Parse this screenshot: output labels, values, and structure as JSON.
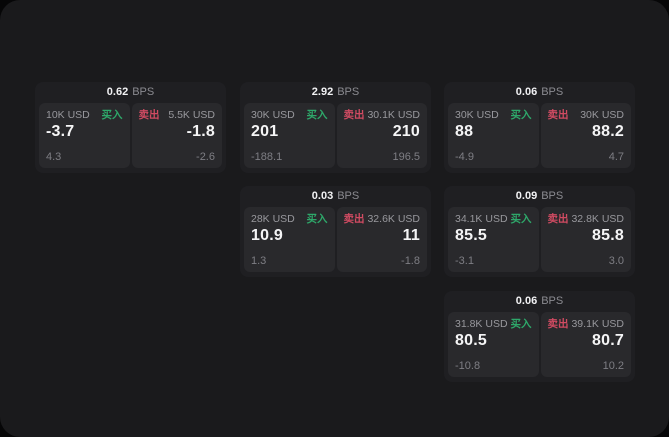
{
  "labels": {
    "buy": "买入",
    "sell": "卖出",
    "bps_suffix": "BPS"
  },
  "colors": {
    "background": "#1a1a1c",
    "card": "#1f1f22",
    "panel": "#29292c",
    "buy_accent": "#2ea86a",
    "sell_accent": "#d14b62"
  },
  "cards": [
    {
      "bps": "0.62",
      "row": 0,
      "col": 0,
      "buy": {
        "size": "10K USD",
        "price": "-3.7",
        "delta": "4.3"
      },
      "sell": {
        "size": "5.5K USD",
        "price": "-1.8",
        "delta": "-2.6"
      }
    },
    {
      "bps": "2.92",
      "row": 0,
      "col": 1,
      "buy": {
        "size": "30K USD",
        "price": "201",
        "delta": "-188.1"
      },
      "sell": {
        "size": "30.1K USD",
        "price": "210",
        "delta": "196.5"
      }
    },
    {
      "bps": "0.06",
      "row": 0,
      "col": 2,
      "buy": {
        "size": "30K USD",
        "price": "88",
        "delta": "-4.9"
      },
      "sell": {
        "size": "30K USD",
        "price": "88.2",
        "delta": "4.7"
      }
    },
    {
      "bps": "0.03",
      "row": 1,
      "col": 1,
      "buy": {
        "size": "28K USD",
        "price": "10.9",
        "delta": "1.3"
      },
      "sell": {
        "size": "32.6K USD",
        "price": "11",
        "delta": "-1.8"
      }
    },
    {
      "bps": "0.09",
      "row": 1,
      "col": 2,
      "buy": {
        "size": "34.1K USD",
        "price": "85.5",
        "delta": "-3.1"
      },
      "sell": {
        "size": "32.8K USD",
        "price": "85.8",
        "delta": "3.0"
      }
    },
    {
      "bps": "0.06",
      "row": 2,
      "col": 2,
      "buy": {
        "size": "31.8K USD",
        "price": "80.5",
        "delta": "-10.8"
      },
      "sell": {
        "size": "39.1K USD",
        "price": "80.7",
        "delta": "10.2"
      }
    }
  ]
}
